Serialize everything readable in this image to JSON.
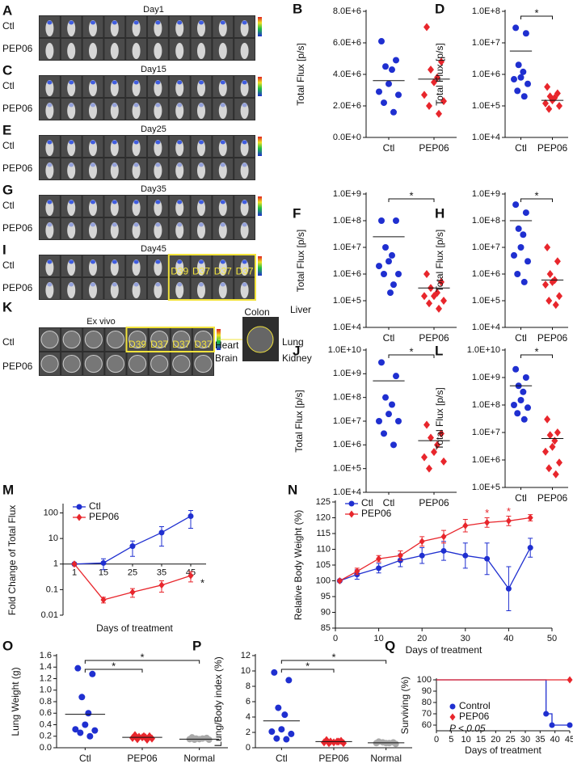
{
  "image_panels": [
    {
      "label": "A",
      "title": "Day1",
      "rows": [
        "Ctl",
        "PEP06"
      ]
    },
    {
      "label": "C",
      "title": "Day15",
      "rows": [
        "Ctl",
        "PEP06"
      ]
    },
    {
      "label": "E",
      "title": "Day25",
      "rows": [
        "Ctl",
        "PEP06"
      ]
    },
    {
      "label": "G",
      "title": "Day35",
      "rows": [
        "Ctl",
        "PEP06"
      ]
    },
    {
      "label": "I",
      "title": "Day45",
      "rows": [
        "Ctl",
        "PEP06"
      ],
      "tags": [
        "D39",
        "D37",
        "D37",
        "D37"
      ]
    },
    {
      "label": "K",
      "title": "Ex vivo",
      "rows": [
        "Ctl",
        "PEP06"
      ],
      "tags": [
        "D39",
        "D37",
        "D37",
        "D37"
      ],
      "organs": [
        "Heart",
        "Brain",
        "Colon",
        "Liver",
        "Lung",
        "Kidney"
      ]
    }
  ],
  "chart_data": [
    {
      "type": "dot",
      "label": "B",
      "ylabel": "Total Flux [p/s]",
      "categories": [
        "Ctl",
        "PEP06"
      ],
      "log_y": false,
      "ylim": [
        0,
        8000000.0
      ],
      "yticks": [
        {
          "value": 0,
          "label": "0.0E+0"
        },
        {
          "value": 2000000.0,
          "label": "2.0E+6"
        },
        {
          "value": 4000000.0,
          "label": "4.0E+6"
        },
        {
          "value": 6000000.0,
          "label": "6.0E+6"
        },
        {
          "value": 8000000.0,
          "label": "8.0E+6"
        }
      ],
      "groups": [
        {
          "color": "#1f2fd0",
          "marker": "circle",
          "values": [
            6100000.0,
            4900000.0,
            4500000.0,
            4300000.0,
            3400000.0,
            2900000.0,
            2700000.0,
            2200000.0,
            1600000.0
          ],
          "mean": 3600000.0
        },
        {
          "color": "#e8262c",
          "marker": "diamond",
          "values": [
            7000000.0,
            4800000.0,
            4300000.0,
            3800000.0,
            3500000.0,
            2700000.0,
            2300000.0,
            2000000.0,
            1500000.0
          ],
          "mean": 3700000.0
        }
      ],
      "significance": []
    },
    {
      "type": "dot",
      "label": "D",
      "ylabel": "Total Flux [p/s]",
      "categories": [
        "Ctl",
        "PEP06"
      ],
      "log_y": true,
      "ylim": [
        10000.0,
        100000000.0
      ],
      "yticks": [
        {
          "value": 10000.0,
          "label": "1.0E+4"
        },
        {
          "value": 100000.0,
          "label": "1.0E+5"
        },
        {
          "value": 1000000.0,
          "label": "1.0E+6"
        },
        {
          "value": 10000000.0,
          "label": "1.0E+7"
        },
        {
          "value": 100000000.0,
          "label": "1.0E+8"
        }
      ],
      "groups": [
        {
          "color": "#1f2fd0",
          "marker": "circle",
          "values": [
            30000000.0,
            20000000.0,
            2000000.0,
            1200000.0,
            800000.0,
            700000.0,
            500000.0,
            300000.0,
            200000.0
          ],
          "mean": 5500000.0
        },
        {
          "color": "#e8262c",
          "marker": "diamond",
          "values": [
            400000.0,
            250000.0,
            200000.0,
            180000.0,
            150000.0,
            120000.0,
            100000.0,
            80000.0
          ],
          "mean": 150000.0
        }
      ],
      "significance": [
        "*"
      ]
    },
    {
      "type": "dot",
      "label": "F",
      "ylabel": "Total Flux [p/s]",
      "categories": [
        "Ctl",
        "PEP06"
      ],
      "log_y": true,
      "ylim": [
        10000.0,
        1000000000.0
      ],
      "yticks": [
        {
          "value": 10000.0,
          "label": "1.0E+4"
        },
        {
          "value": 100000.0,
          "label": "1.0E+5"
        },
        {
          "value": 1000000.0,
          "label": "1.0E+6"
        },
        {
          "value": 10000000.0,
          "label": "1.0E+7"
        },
        {
          "value": 100000000.0,
          "label": "1.0E+8"
        },
        {
          "value": 1000000000.0,
          "label": "1.0E+9"
        }
      ],
      "groups": [
        {
          "color": "#1f2fd0",
          "marker": "circle",
          "values": [
            100000000.0,
            100000000.0,
            10000000.0,
            5000000.0,
            3000000.0,
            2000000.0,
            1000000.0,
            1000000.0,
            400000.0,
            200000.0
          ],
          "mean": 25000000.0
        },
        {
          "color": "#e8262c",
          "marker": "diamond",
          "values": [
            1000000.0,
            500000.0,
            300000.0,
            200000.0,
            150000.0,
            150000.0,
            100000.0,
            80000.0,
            50000.0
          ],
          "mean": 300000.0
        }
      ],
      "significance": [
        "*"
      ]
    },
    {
      "type": "dot",
      "label": "H",
      "ylabel": "Total Flux [p/s]",
      "categories": [
        "Ctl",
        "PEP06"
      ],
      "log_y": true,
      "ylim": [
        10000.0,
        1000000000.0
      ],
      "yticks": [
        {
          "value": 10000.0,
          "label": "1.0E+4"
        },
        {
          "value": 100000.0,
          "label": "1.0E+5"
        },
        {
          "value": 1000000.0,
          "label": "1.0E+6"
        },
        {
          "value": 10000000.0,
          "label": "1.0E+7"
        },
        {
          "value": 100000000.0,
          "label": "1.0E+8"
        },
        {
          "value": 1000000000.0,
          "label": "1.0E+9"
        }
      ],
      "groups": [
        {
          "color": "#1f2fd0",
          "marker": "circle",
          "values": [
            400000000.0,
            200000000.0,
            50000000.0,
            30000000.0,
            10000000.0,
            5000000.0,
            3000000.0,
            1000000.0,
            500000.0
          ],
          "mean": 100000000.0
        },
        {
          "color": "#e8262c",
          "marker": "diamond",
          "values": [
            10000000.0,
            3000000.0,
            1000000.0,
            600000.0,
            500000.0,
            400000.0,
            150000.0,
            100000.0,
            70000.0
          ],
          "mean": 600000.0
        }
      ],
      "significance": [
        "*"
      ]
    },
    {
      "type": "dot",
      "label": "J",
      "ylabel": "Total Flux [p/s]",
      "categories": [
        "Ctl",
        "PEP06"
      ],
      "log_y": true,
      "ylim": [
        10000.0,
        10000000000.0
      ],
      "yticks": [
        {
          "value": 10000.0,
          "label": "1.0E+4"
        },
        {
          "value": 100000.0,
          "label": "1.0E+5"
        },
        {
          "value": 1000000.0,
          "label": "1.0E+6"
        },
        {
          "value": 10000000.0,
          "label": "1.0E+7"
        },
        {
          "value": 100000000.0,
          "label": "1.0E+8"
        },
        {
          "value": 1000000000.0,
          "label": "1.0E+9"
        },
        {
          "value": 10000000000.0,
          "label": "1.0E+10"
        }
      ],
      "groups": [
        {
          "color": "#1f2fd0",
          "marker": "circle",
          "values": [
            3000000000.0,
            800000000.0,
            100000000.0,
            50000000.0,
            20000000.0,
            10000000.0,
            10000000.0,
            3000000.0,
            1000000.0
          ],
          "mean": 500000000.0
        },
        {
          "color": "#e8262c",
          "marker": "diamond",
          "values": [
            7000000.0,
            3000000.0,
            2000000.0,
            1000000.0,
            500000.0,
            300000.0,
            200000.0,
            100000.0
          ],
          "mean": 1500000.0
        }
      ],
      "significance": [
        "*"
      ]
    },
    {
      "type": "dot",
      "label": "L",
      "ylabel": "Total Flux [p/s]",
      "categories": [
        "Ctl",
        "PEP06"
      ],
      "log_y": true,
      "ylim": [
        100000.0,
        10000000000.0
      ],
      "yticks": [
        {
          "value": 100000.0,
          "label": "1.0E+5"
        },
        {
          "value": 1000000.0,
          "label": "1.0E+6"
        },
        {
          "value": 10000000.0,
          "label": "1.0E+7"
        },
        {
          "value": 100000000.0,
          "label": "1.0E+8"
        },
        {
          "value": 1000000000.0,
          "label": "1.0E+9"
        },
        {
          "value": 10000000000.0,
          "label": "1.0E+10"
        }
      ],
      "groups": [
        {
          "color": "#1f2fd0",
          "marker": "circle",
          "values": [
            2000000000.0,
            1000000000.0,
            500000000.0,
            300000000.0,
            150000000.0,
            100000000.0,
            80000000.0,
            50000000.0,
            30000000.0
          ],
          "mean": 500000000.0
        },
        {
          "color": "#e8262c",
          "marker": "diamond",
          "values": [
            30000000.0,
            10000000.0,
            8000000.0,
            5000000.0,
            3000000.0,
            2000000.0,
            800000.0,
            500000.0,
            300000.0
          ],
          "mean": 6000000.0
        }
      ],
      "significance": [
        "*"
      ]
    },
    {
      "type": "line",
      "label": "M",
      "ylabel": "Fold Change of Total Flux",
      "xlabel": "Days of treatment",
      "log_y": true,
      "ylim": [
        0.01,
        200
      ],
      "yticks": [
        0.01,
        0.1,
        1,
        10,
        100
      ],
      "categories": [
        "1",
        "15",
        "25",
        "35",
        "45"
      ],
      "series": [
        {
          "name": "Ctl",
          "color": "#1f2fd0",
          "marker": "circle",
          "values": [
            1,
            1.1,
            5,
            17,
            75
          ],
          "errors": [
            0,
            0.5,
            3,
            12,
            50
          ]
        },
        {
          "name": "PEP06",
          "color": "#e8262c",
          "marker": "diamond",
          "values": [
            1,
            0.04,
            0.08,
            0.15,
            0.35
          ],
          "errors": [
            0,
            0.01,
            0.03,
            0.07,
            0.15
          ]
        }
      ],
      "annotations": [
        "*"
      ]
    },
    {
      "type": "line",
      "label": "N",
      "ylabel": "Relative Body Weight (%)",
      "xlabel": "Days of treatment",
      "log_y": false,
      "xlim": [
        0,
        50
      ],
      "xticks": [
        0,
        10,
        20,
        30,
        40,
        50
      ],
      "ylim": [
        85,
        125
      ],
      "yticks": [
        85,
        90,
        95,
        100,
        105,
        110,
        115,
        120,
        125
      ],
      "x": [
        1,
        5,
        10,
        15,
        20,
        25,
        30,
        35,
        40,
        45
      ],
      "series": [
        {
          "name": "Ctl",
          "color": "#1f2fd0",
          "marker": "circle",
          "values": [
            100,
            102,
            104,
            106.5,
            108,
            109.5,
            108,
            107,
            97.5,
            110.5
          ],
          "errors": [
            0,
            1.5,
            1.5,
            2,
            2.5,
            3,
            4,
            5,
            7,
            3
          ]
        },
        {
          "name": "PEP06",
          "color": "#e8262c",
          "marker": "diamond",
          "values": [
            100,
            103,
            107,
            108,
            112.5,
            114,
            117.5,
            118.5,
            119,
            120
          ],
          "errors": [
            0,
            1,
            1,
            1.5,
            1.5,
            2,
            2,
            1.5,
            1.5,
            1
          ]
        }
      ],
      "annotations": [
        "*",
        "*"
      ]
    },
    {
      "type": "dot",
      "label": "O",
      "ylabel": "Lung Weight (g)",
      "categories": [
        "Ctl",
        "PEP06",
        "Normal"
      ],
      "log_y": false,
      "ylim": [
        0,
        1.6
      ],
      "yticks": [
        {
          "value": 0,
          "label": "0.0"
        },
        0.2,
        0.4,
        0.6,
        0.8,
        {
          "value": 1,
          "label": "1.0"
        },
        1.2,
        1.4,
        1.6
      ],
      "groups": [
        {
          "color": "#1f2fd0",
          "marker": "circle",
          "values": [
            1.38,
            1.28,
            0.88,
            0.6,
            0.4,
            0.32,
            0.3,
            0.26,
            0.2
          ],
          "mean": 0.58
        },
        {
          "color": "#e8262c",
          "marker": "diamond",
          "values": [
            0.22,
            0.2,
            0.19,
            0.18,
            0.18,
            0.17,
            0.16,
            0.15,
            0.14,
            0.2
          ],
          "mean": 0.18
        },
        {
          "color": "#a9a9a9",
          "marker": "circle",
          "values": [
            0.18,
            0.17,
            0.16,
            0.16,
            0.15,
            0.15,
            0.14,
            0.14
          ],
          "mean": 0.15
        }
      ],
      "significance": [
        "*",
        "*"
      ]
    },
    {
      "type": "dot",
      "label": "P",
      "ylabel": "Lung/Body index (%)",
      "categories": [
        "Ctl",
        "PEP06",
        "Normal"
      ],
      "log_y": false,
      "ylim": [
        0,
        12
      ],
      "yticks": [
        0,
        2,
        4,
        6,
        8,
        10,
        12
      ],
      "groups": [
        {
          "color": "#1f2fd0",
          "marker": "circle",
          "values": [
            9.8,
            8.8,
            5.2,
            4.3,
            2.4,
            2.1,
            1.8,
            1.2,
            1.1
          ],
          "mean": 3.5
        },
        {
          "color": "#e8262c",
          "marker": "diamond",
          "values": [
            1.0,
            0.9,
            0.8,
            0.8,
            0.7,
            0.7,
            0.6,
            0.6,
            0.8
          ],
          "mean": 0.8
        },
        {
          "color": "#a9a9a9",
          "marker": "circle",
          "values": [
            0.8,
            0.7,
            0.7,
            0.6,
            0.6,
            0.6,
            0.5
          ],
          "mean": 0.65
        }
      ],
      "significance": [
        "*",
        "*"
      ]
    },
    {
      "type": "step",
      "label": "Q",
      "ylabel": "Surviving (%)",
      "xlabel": "Days of treatment",
      "annotation": "P < 0.05",
      "xlim": [
        0,
        45
      ],
      "xticks": [
        0,
        5,
        10,
        15,
        20,
        25,
        30,
        35,
        40,
        45
      ],
      "ylim": [
        55,
        100
      ],
      "yticks": [
        60,
        70,
        80,
        90,
        100
      ],
      "series": [
        {
          "name": "Control",
          "color": "#1f2fd0",
          "marker": "circle",
          "x": [
            0,
            37,
            39,
            45
          ],
          "values": [
            100,
            70,
            60,
            60
          ]
        },
        {
          "name": "PEP06",
          "color": "#e8262c",
          "marker": "diamond",
          "x": [
            0,
            45
          ],
          "values": [
            100,
            100
          ]
        }
      ]
    }
  ]
}
